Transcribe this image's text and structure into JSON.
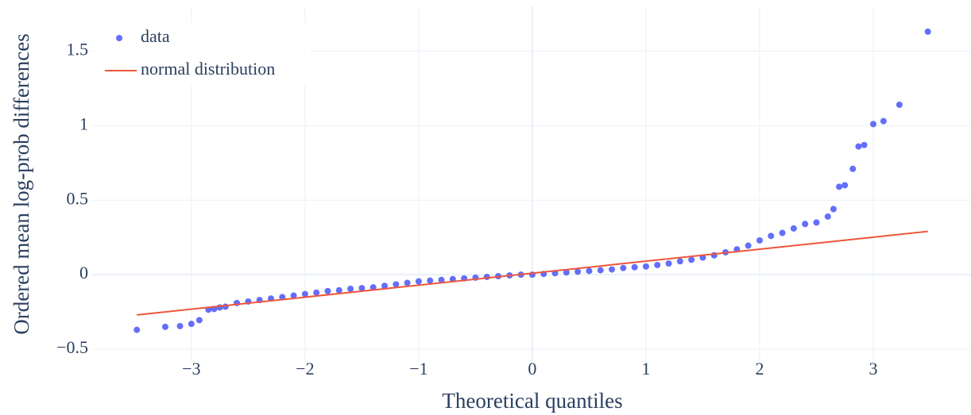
{
  "chart_data": {
    "type": "scatter",
    "xlabel": "Theoretical quantiles",
    "ylabel": "Ordered mean log-prob differences",
    "xlim": [
      -3.88,
      3.86
    ],
    "ylim": [
      -0.59,
      1.8
    ],
    "xticks": [
      {
        "value": -3,
        "label": "−3"
      },
      {
        "value": -2,
        "label": "−2"
      },
      {
        "value": -1,
        "label": "−1"
      },
      0,
      1,
      2,
      3
    ],
    "yticks": [
      {
        "value": -0.5,
        "label": "−0.5"
      },
      0,
      0.5,
      1,
      1.5
    ],
    "grid": true,
    "legend": "top-left",
    "series": [
      {
        "name": "data",
        "color": "#636efa",
        "mode": "markers",
        "x": [
          -3.48,
          -3.23,
          -3.1,
          -3.0,
          -2.93,
          -2.85,
          -2.8,
          -2.75,
          -2.7,
          -2.6,
          -2.5,
          -2.4,
          -2.3,
          -2.2,
          -2.1,
          -2.0,
          -1.9,
          -1.8,
          -1.7,
          -1.6,
          -1.5,
          -1.4,
          -1.3,
          -1.2,
          -1.1,
          -1.0,
          -0.9,
          -0.8,
          -0.7,
          -0.6,
          -0.5,
          -0.4,
          -0.3,
          -0.2,
          -0.1,
          0,
          0.1,
          0.2,
          0.3,
          0.4,
          0.5,
          0.6,
          0.7,
          0.8,
          0.9,
          1.0,
          1.1,
          1.2,
          1.3,
          1.4,
          1.5,
          1.6,
          1.7,
          1.8,
          1.9,
          2.0,
          2.1,
          2.2,
          2.3,
          2.4,
          2.5,
          2.6,
          2.65,
          2.7,
          2.75,
          2.82,
          2.87,
          2.92,
          3.0,
          3.09,
          3.23,
          3.48
        ],
        "values": [
          -0.37,
          -0.35,
          -0.345,
          -0.33,
          -0.305,
          -0.235,
          -0.23,
          -0.22,
          -0.215,
          -0.19,
          -0.18,
          -0.17,
          -0.16,
          -0.15,
          -0.14,
          -0.13,
          -0.12,
          -0.11,
          -0.105,
          -0.095,
          -0.09,
          -0.085,
          -0.075,
          -0.065,
          -0.055,
          -0.045,
          -0.04,
          -0.035,
          -0.03,
          -0.025,
          -0.02,
          -0.015,
          -0.01,
          -0.005,
          0,
          0,
          0.005,
          0.01,
          0.015,
          0.02,
          0.025,
          0.03,
          0.035,
          0.045,
          0.05,
          0.055,
          0.065,
          0.075,
          0.09,
          0.1,
          0.115,
          0.13,
          0.15,
          0.17,
          0.195,
          0.23,
          0.26,
          0.28,
          0.31,
          0.34,
          0.35,
          0.39,
          0.44,
          0.59,
          0.6,
          0.71,
          0.86,
          0.87,
          1.01,
          1.03,
          1.14,
          1.63
        ]
      },
      {
        "name": "normal distribution",
        "color": "#ef553b",
        "mode": "lines",
        "x": [
          -3.48,
          3.48
        ],
        "values": [
          -0.27,
          0.29
        ]
      }
    ]
  }
}
